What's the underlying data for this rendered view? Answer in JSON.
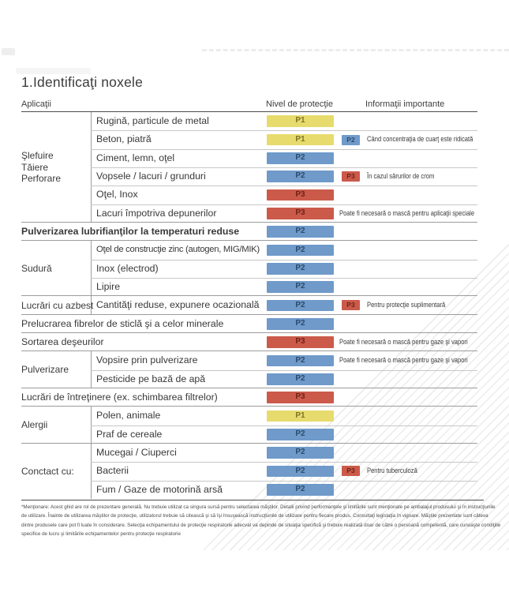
{
  "page": {
    "title": "1.Identificaţi noxele",
    "columns": {
      "applications": "Aplicaţii",
      "protection": "Nivel de protecţie",
      "info": "Informaţii importante"
    }
  },
  "legend_colors": {
    "p1": "#e7db6d",
    "p2": "#6f9aca",
    "p3": "#cb5a4b"
  },
  "table": {
    "sections": [
      {
        "group": "Şlefuire\nTăiere\nPerforare",
        "rows": [
          {
            "label": "Rugină, particule de metal",
            "level": "P1"
          },
          {
            "label": "Beton, piatră",
            "level": "P1",
            "extra_level": "P2",
            "info": "Când concentraţia de cuarţ este ridicată"
          },
          {
            "label": "Ciment, lemn, oţel",
            "level": "P2"
          },
          {
            "label": "Vopsele / lacuri / grunduri",
            "level": "P2",
            "extra_level": "P3",
            "info": "În cazul sărurilor de crom"
          },
          {
            "label": "Oţel, Inox",
            "level": "P3"
          },
          {
            "label": "Lacuri împotriva depunerilor",
            "level": "P3",
            "info": "Poate fi necesară o mască pentru aplicaţii speciale"
          }
        ]
      },
      {
        "rows": [
          {
            "label": "Pulverizarea lubrifianţilor la temperaturi reduse",
            "level": "P2",
            "bold": true
          }
        ]
      },
      {
        "group": "Sudură",
        "rows": [
          {
            "label": "Oţel de construcţie zinc (autogen, MIG/MIK)",
            "level": "P2"
          },
          {
            "label": "Inox (electrod)",
            "level": "P2"
          },
          {
            "label": "Lipire",
            "level": "P2"
          }
        ]
      },
      {
        "group": "Lucrări cu azbest",
        "rows": [
          {
            "label": "Cantităţi reduse, expunere ocazională",
            "level": "P2",
            "extra_level": "P3",
            "info": "Pentru protecţie suplimentară"
          }
        ]
      },
      {
        "rows": [
          {
            "label": "Prelucrarea fibrelor de sticlă şi a celor minerale",
            "level": "P2"
          }
        ]
      },
      {
        "rows": [
          {
            "label": "Sortarea deşeurilor",
            "level": "P3",
            "info": "Poate fi necesară o mască pentru gaze şi vapori"
          }
        ]
      },
      {
        "group": "Pulverizare",
        "rows": [
          {
            "label": "Vopsire prin pulverizare",
            "level": "P2",
            "info": "Poate fi necesară o mască pentru gaze şi vapori"
          },
          {
            "label": "Pesticide pe bază de apă",
            "level": "P2"
          }
        ]
      },
      {
        "rows": [
          {
            "label": "Lucrări de întreţinere (ex. schimbarea filtrelor)",
            "level": "P3"
          }
        ]
      },
      {
        "group": "Alergii",
        "rows": [
          {
            "label": "Polen, animale",
            "level": "P1"
          },
          {
            "label": "Praf de cereale",
            "level": "P2"
          }
        ]
      },
      {
        "group": "Conctact cu:",
        "rows": [
          {
            "label": "Mucegai / Ciuperci",
            "level": "P2"
          },
          {
            "label": "Bacterii",
            "level": "P2",
            "extra_level": "P3",
            "info": "Pentru tuberculoză"
          },
          {
            "label": "Fum / Gaze de motorină arsă",
            "level": "P2"
          }
        ]
      }
    ]
  },
  "footnote": {
    "lines": [
      "*Menţionare: Acest ghid are rol de prezentare generală. Nu trebuie utilizat ca singura sursă pentru selectarea măştilor. Detalii privind performanţele şi limitările sunt menţionate pe ambalajul produsului şi în instrucţiunile",
      "de utilizare. Înainte de utilizarea măştilor de protecţie, utilizatorul trebuie să citească şi să îşi însuşească instrucţiunile de utilizare pentru fiecare produs. Consultaţi legislaţia în vigoare. Măştile prezentate sunt câteva",
      "dintre produsele care pot fi luate în considerare. Selecţia echipamentului de protecţie respiratorie adecvat va depinde de situaţia specifică şi trebuie realizată doar de către o persoană competentă, care cunoaşte condiţiile",
      "specifice de lucru şi limitările echipamentelor pentru protecţie respiratorie"
    ]
  }
}
